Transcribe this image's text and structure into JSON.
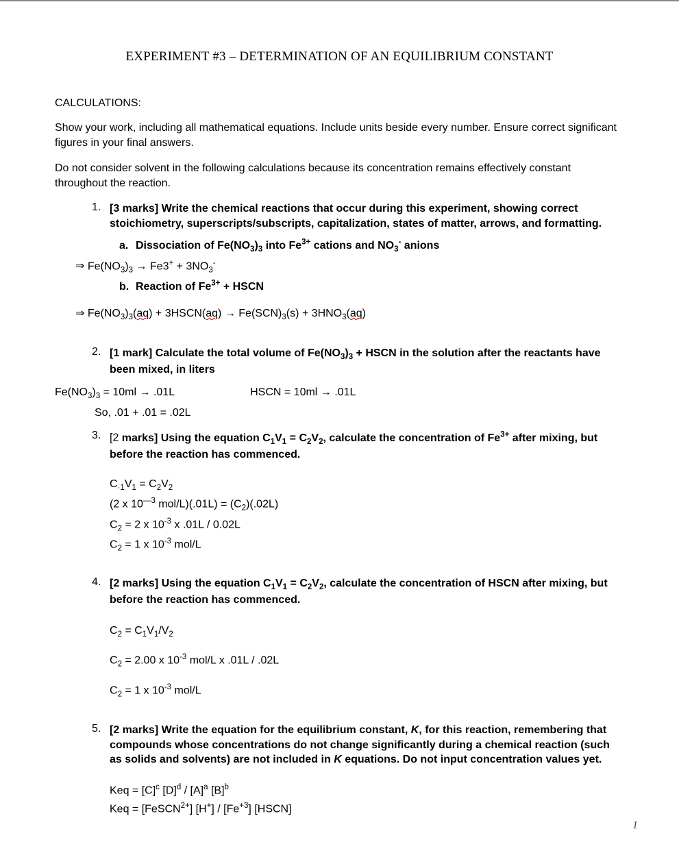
{
  "title": "EXPERIMENT #3 – DETERMINATION OF AN EQUILIBRIUM CONSTANT",
  "section_heading": "CALCULATIONS:",
  "intro": [
    "Show your work, including all mathematical equations. Include units beside every number. Ensure correct significant figures in your final answers.",
    "Do not consider solvent in the following calculations because its concentration remains effectively constant throughout the reaction."
  ],
  "q1": {
    "num": "1.",
    "text": "[3 marks] Write the chemical reactions that occur during this experiment, showing correct stoichiometry, superscripts/subscripts, capitalization, states of matter, arrows, and formatting.",
    "a_letter": "a.",
    "a_text_html": "Dissociation of Fe(NO<sub>3</sub>)<sub>3</sub> into Fe<sup>3+</sup> cations and NO<sub>3</sub><sup>-</sup> anions",
    "a_answer_html": "Fe(NO<sub>3</sub>)<sub>3</sub> → Fe3<sup>+</sup> + 3NO<sub>3</sub><sup>-</sup>",
    "b_letter": "b.",
    "b_text_html": "Reaction of Fe<sup>3+</sup> + HSCN",
    "b_answer_html": "Fe(NO<sub>3</sub>)<sub>3</sub>(<span class=\"squiggly\">aq</span>) + 3HSCN(<span class=\"squiggly\">aq</span>) → Fe(SCN)<sub>3</sub>(s) + 3HNO<sub>3</sub>(<span class=\"squiggly\">aq</span>)"
  },
  "q2": {
    "num": "2.",
    "text_html": "[1 mark] Calculate the total volume of Fe(NO<sub>3</sub>)<sub>3</sub> + HSCN in the solution after the reactants have been mixed, in liters",
    "line1_html": "Fe(NO<sub>3</sub>)<sub>3</sub> = 10ml → .01L<span class=\"tab\"></span>HSCN = 10ml → .01L",
    "line2": "So, .01 + .01 = .02L"
  },
  "q3": {
    "num": "3.",
    "prefix_plain": "[2 ",
    "text_bold_html": "marks] Using the equation C<sub>1</sub>V<sub>1</sub> = C<sub>2</sub>V<sub>2</sub>, calculate the concentration of Fe<sup>3+</sup> after mixing, but before the reaction has commenced.",
    "lines_html": [
      "C<sub>·1</sub>V<sub>1</sub> = C<sub>2</sub>V<sub>2</sub>",
      "(2 x 10<sup>—3</sup> mol/L)(.01L) = (C<sub>2</sub>)(.02L)",
      "C<sub>2</sub> = 2 x 10<sup>-3</sup> x .01L / 0.02L",
      "C<sub>2</sub> = 1 x 10<sup>-3</sup> mol/L"
    ]
  },
  "q4": {
    "num": "4.",
    "text_html": "[2 marks] Using the equation C<sub>1</sub>V<sub>1</sub> = C<sub>2</sub>V<sub>2</sub>, calculate the concentration of HSCN after mixing, but before the reaction has commenced.",
    "lines_html": [
      "C<sub>2</sub> = C<sub>1</sub>V<sub>1</sub>/V<sub>2</sub>",
      "C<sub>2</sub> = 2.00 x 10<sup>-3</sup> mol/L x .01L / .02L",
      "C<sub>2</sub> = 1 x 10<sup>-3</sup> mol/L"
    ]
  },
  "q5": {
    "num": "5.",
    "text_html": "[2 marks] Write the equation for the equilibrium constant, <i>K</i>, for this reaction, remembering that compounds whose concentrations do not change significantly during a chemical reaction (such as solids and solvents) are not included in <i>K</i> equations. Do not input concentration values yet.",
    "lines_html": [
      "Keq = [C]<sup>c</sup> [D]<sup>d</sup> / [A]<sup>a</sup> [B]<sup>b</sup>",
      "Keq = [FeSCN<sup>2+</sup>] [H<sup>+</sup>] / [Fe<sup>+3</sup>] [HSCN]"
    ]
  },
  "page_number": "1"
}
